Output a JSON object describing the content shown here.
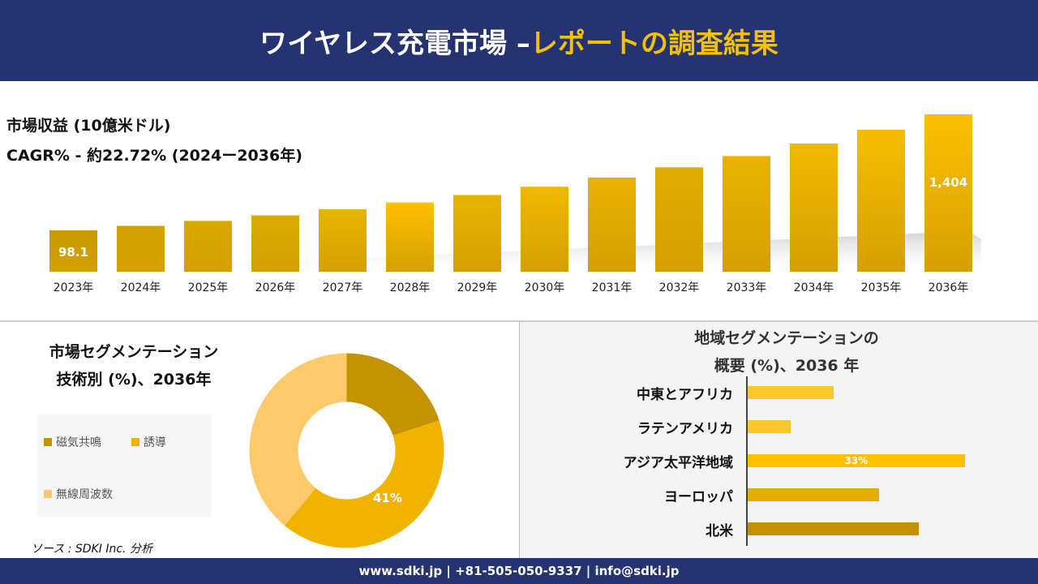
{
  "header": {
    "title_white": "ワイヤレス充電市場 –",
    "title_yellow": "レポートの調査結果"
  },
  "top": {
    "line1": "市場収益 (10億米ドル)",
    "line2": "CAGR% - 約22.72% (2024ー2036年)"
  },
  "chart_data": [
    {
      "type": "bar",
      "title": "市場収益 (10億米ドル)",
      "subtitle": "CAGR% - 約22.72% (2024ー2036年)",
      "categories": [
        "2023年",
        "2024年",
        "2025年",
        "2026年",
        "2027年",
        "2028年",
        "2029年",
        "2030年",
        "2031年",
        "2032年",
        "2033年",
        "2034年",
        "2035年",
        "2036年"
      ],
      "values": [
        98.1,
        120.4,
        147.7,
        181.3,
        222.5,
        273.0,
        335.1,
        411.2,
        504.6,
        619.3,
        760.0,
        932.7,
        1144.6,
        1404
      ],
      "data_labels": {
        "0": "98.1",
        "13": "1,404"
      },
      "colors": [
        "#c99a00",
        "#d4a300",
        "#d9a800",
        "#dcab00",
        "#e8b400",
        "#ffc000",
        "#e8b400",
        "#f0b800",
        "#e8b200",
        "#e0ad00",
        "#e8b400",
        "#f0b800",
        "#f5bd00",
        "#fcc000"
      ]
    },
    {
      "type": "pie",
      "title": "市場セグメンテーション 技術別 (%)、2036年",
      "categories": [
        "磁気共鳴",
        "誘導",
        "無線周波数"
      ],
      "values": [
        20,
        41,
        39
      ],
      "colors": [
        "#c49400",
        "#f0b400",
        "#fdc96a"
      ],
      "data_labels": {
        "1": "41%"
      },
      "legend": "left"
    },
    {
      "type": "bar",
      "orientation": "horizontal",
      "title": "地域セグメンテーションの 概要 (%)、2036 年",
      "categories": [
        "中東とアフリカ",
        "ラテンアメリカ",
        "アジア太平洋地域",
        "ヨーロッパ",
        "北米"
      ],
      "values": [
        13,
        6.5,
        33,
        20,
        26
      ],
      "data_labels": {
        "2": "33%"
      },
      "colors": [
        "#fcc62e",
        "#fcc62e",
        "#ffc000",
        "#e3ac00",
        "#c49000"
      ]
    }
  ],
  "pie_title": {
    "l1": "市場セグメンテーション",
    "l2": "技術別 (%)、2036年"
  },
  "region_title": {
    "l1": "地域セグメンテーションの",
    "l2": "概要 (%)、2036 年"
  },
  "source": "ソース : SDKI Inc. 分析",
  "footer": "www.sdki.jp | +81-505-050-9337 | info@sdki.jp"
}
